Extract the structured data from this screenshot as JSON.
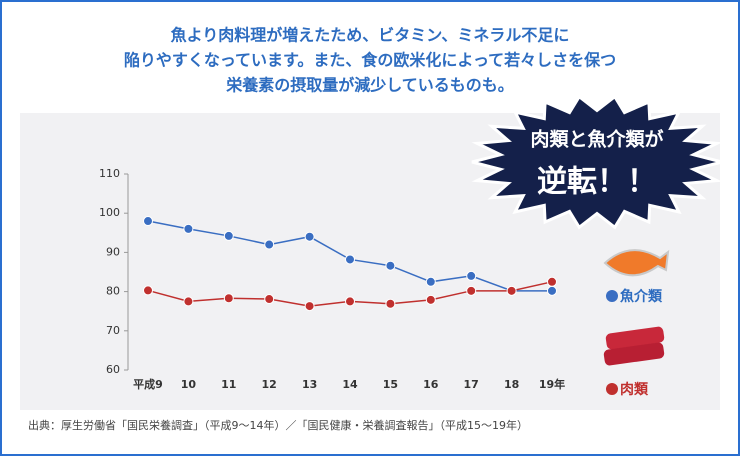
{
  "chart_data": {
    "type": "line",
    "title_lines": [
      "魚より肉料理が増えたため、ビタミン、ミネラル不足に",
      "陥りやすくなっています。また、食の欧米化によって若々しさを保つ",
      "栄養素の摂取量が減少しているものも。"
    ],
    "callout": [
      "肉類と魚介類が",
      "逆転！！"
    ],
    "categories": [
      "平成9",
      "10",
      "11",
      "12",
      "13",
      "14",
      "15",
      "16",
      "17",
      "18",
      "19年"
    ],
    "series": [
      {
        "name": "魚介類",
        "color": "#3a6ec2",
        "values": [
          98,
          96,
          94.2,
          92,
          94,
          88.2,
          86.6,
          82.5,
          84,
          80.2,
          80.2
        ]
      },
      {
        "name": "肉類",
        "color": "#c0302e",
        "values": [
          80.3,
          77.5,
          78.3,
          78.1,
          76.3,
          77.5,
          76.9,
          77.9,
          80.2,
          80.2,
          82.5
        ]
      }
    ],
    "ylim": [
      60,
      110
    ],
    "yticks": [
      60,
      70,
      80,
      90,
      100,
      110
    ],
    "grid": false,
    "note": "出典：厚生労働省「国民栄養調査」（平成9～14年）／「国民健康・栄養調査報告」（平成15～19年）"
  }
}
